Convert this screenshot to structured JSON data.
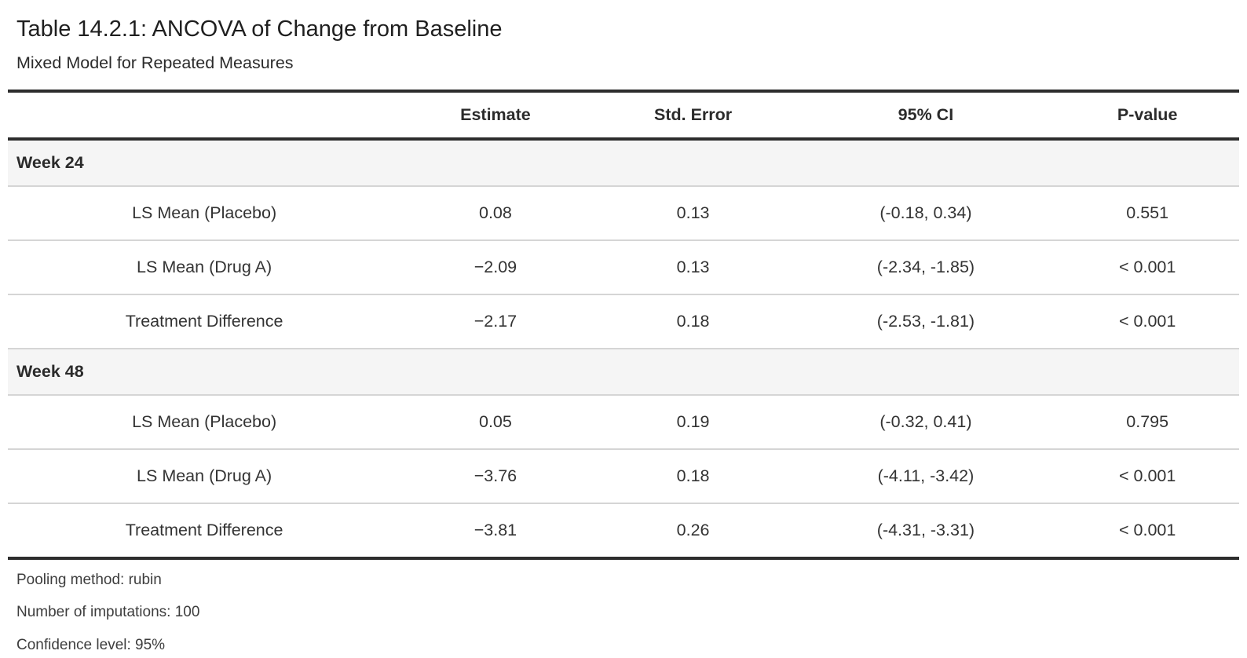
{
  "theme": {
    "heavy_rule_color": "#2d2d2d",
    "light_rule_color": "#d5d5d5",
    "group_row_bg": "#f5f5f5",
    "text_color": "#333333"
  },
  "table": {
    "title": "Table 14.2.1: ANCOVA of Change from Baseline",
    "subtitle": "Mixed Model for Repeated Measures",
    "columns": [
      "",
      "Estimate",
      "Std. Error",
      "95% CI",
      "P-value"
    ],
    "groups": [
      {
        "label": "Week 24",
        "rows": [
          {
            "label": "LS Mean (Placebo)",
            "estimate": "0.08",
            "std_error": "0.13",
            "ci": "(-0.18, 0.34)",
            "p_value": "0.551"
          },
          {
            "label": "LS Mean (Drug A)",
            "estimate": "−2.09",
            "std_error": "0.13",
            "ci": "(-2.34, -1.85)",
            "p_value": "< 0.001"
          },
          {
            "label": "Treatment Difference",
            "estimate": "−2.17",
            "std_error": "0.18",
            "ci": "(-2.53, -1.81)",
            "p_value": "< 0.001"
          }
        ]
      },
      {
        "label": "Week 48",
        "rows": [
          {
            "label": "LS Mean (Placebo)",
            "estimate": "0.05",
            "std_error": "0.19",
            "ci": "(-0.32, 0.41)",
            "p_value": "0.795"
          },
          {
            "label": "LS Mean (Drug A)",
            "estimate": "−3.76",
            "std_error": "0.18",
            "ci": "(-4.11, -3.42)",
            "p_value": "< 0.001"
          },
          {
            "label": "Treatment Difference",
            "estimate": "−3.81",
            "std_error": "0.26",
            "ci": "(-4.31, -3.31)",
            "p_value": "< 0.001"
          }
        ]
      }
    ],
    "footnotes": [
      "Pooling method: rubin",
      "Number of imputations: 100",
      "Confidence level: 95%"
    ]
  }
}
